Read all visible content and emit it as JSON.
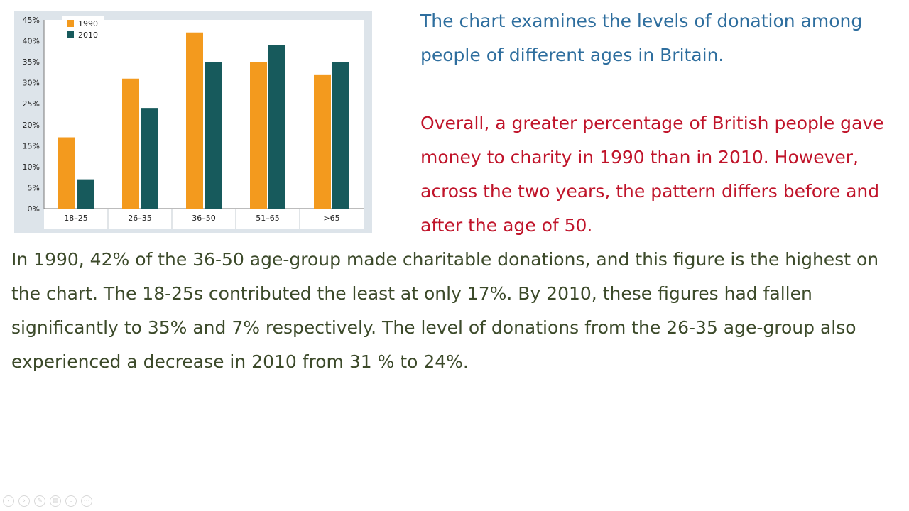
{
  "paragraphs": {
    "intro": "The chart examines the levels of donation among people of different ages in Britain.",
    "overview": "Overall, a greater percentage of British people gave money  to charity in 1990 than in 2010. However, across the two years, the pattern differs before and after the age of 50.",
    "details": "In 1990, 42% of the 36-50 age-group made charitable donations, and this figure is the highest on the chart. The 18-25s contributed the least at only 17%. By 2010, these figures had fallen significantly to 35% and 7% respectively. The level of donations from the 26-35 age-group also experienced a decrease in 2010 from 31 % to 24%."
  },
  "colors": {
    "intro_text": "#2e6e9e",
    "overview_text": "#c0142a",
    "details_text": "#3c4a2a",
    "series_1990": "#f39a1e",
    "series_2010": "#175a5c"
  },
  "slide_controls": [
    {
      "icon": "previous-icon",
      "glyph": "‹"
    },
    {
      "icon": "next-icon",
      "glyph": "›"
    },
    {
      "icon": "pen-icon",
      "glyph": "✎"
    },
    {
      "icon": "slides-icon",
      "glyph": "▤"
    },
    {
      "icon": "zoom-icon",
      "glyph": "⌕"
    },
    {
      "icon": "more-icon",
      "glyph": "⋯"
    }
  ],
  "chart_data": {
    "type": "bar",
    "categories": [
      "18–25",
      "26–35",
      "36–50",
      "51–65",
      ">65"
    ],
    "series": [
      {
        "name": "1990",
        "values": [
          17,
          31,
          42,
          35,
          32
        ]
      },
      {
        "name": "2010",
        "values": [
          7,
          24,
          35,
          39,
          35
        ]
      }
    ],
    "y_ticks": [
      "0%",
      "5%",
      "10%",
      "15%",
      "20%",
      "25%",
      "30%",
      "35%",
      "40%",
      "45%"
    ],
    "ylim": [
      0,
      45
    ],
    "legend_placement": "top-left",
    "grid": false
  }
}
